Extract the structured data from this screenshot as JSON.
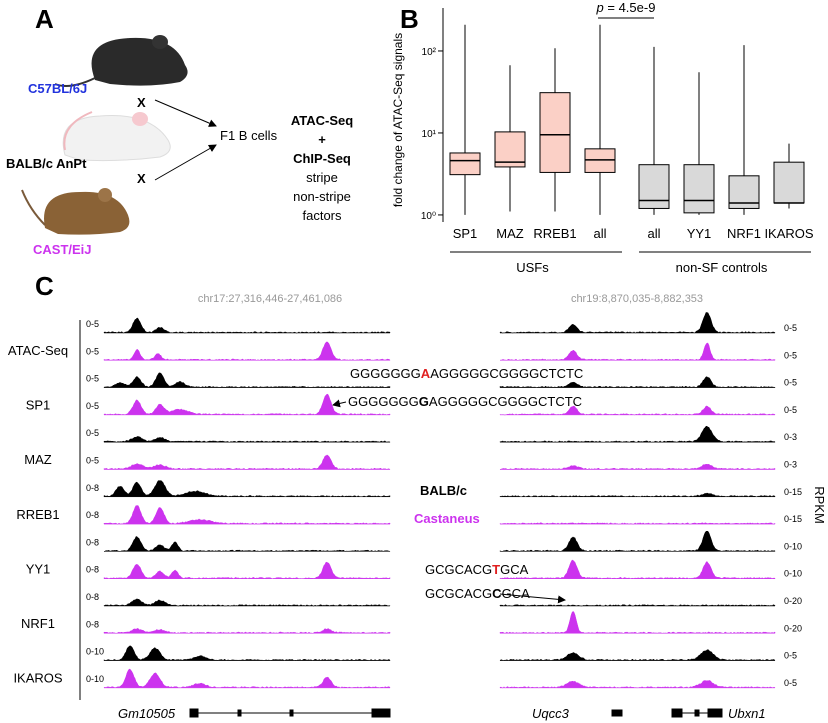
{
  "panel_a": {
    "label": "A",
    "strains": [
      {
        "name": "C57BL/6J",
        "color": "#2233dd"
      },
      {
        "name": "BALB/c AnPt",
        "color": "#000000"
      },
      {
        "name": "CAST/EiJ",
        "color": "#cc33ee"
      }
    ],
    "cross_marks": [
      "X",
      "X"
    ],
    "offspring": "F1 B cells",
    "assays": [
      "ATAC-Seq",
      "+",
      "ChIP-Seq",
      "stripe",
      "non-stripe",
      "factors"
    ]
  },
  "chart_data": {
    "type": "box",
    "label": "B",
    "ylabel": "fold change of ATAC-Seq signals",
    "log_y": true,
    "ylim": [
      0.82,
      316
    ],
    "yticks": [
      {
        "value": 1,
        "label": "10⁰"
      },
      {
        "value": 10,
        "label": "10¹"
      },
      {
        "value": 100,
        "label": "10²"
      }
    ],
    "annotation": {
      "symbol": "p",
      "text": " = 4.5e-9"
    },
    "series": [
      {
        "name": "USFs",
        "color": "#fbd0c6",
        "categories": [
          "SP1",
          "MAZ",
          "RREB1",
          "all"
        ],
        "values": [
          {
            "whislo": 1.0,
            "q1": 3.1,
            "med": 4.6,
            "q3": 5.7,
            "whishi": 209
          },
          {
            "whislo": 1.1,
            "q1": 3.85,
            "med": 4.4,
            "q3": 10.3,
            "whishi": 67
          },
          {
            "whislo": 1.1,
            "q1": 3.3,
            "med": 9.5,
            "q3": 31,
            "whishi": 108
          },
          {
            "whislo": 1.0,
            "q1": 3.3,
            "med": 4.7,
            "q3": 6.4,
            "whishi": 209
          }
        ]
      },
      {
        "name": "non-SF controls",
        "color": "#d9d9d9",
        "categories": [
          "all",
          "YY1",
          "NRF1",
          "IKAROS"
        ],
        "values": [
          {
            "whislo": 1.0,
            "q1": 1.2,
            "med": 1.5,
            "q3": 4.1,
            "whishi": 112
          },
          {
            "whislo": 1.0,
            "q1": 1.06,
            "med": 1.5,
            "q3": 4.1,
            "whishi": 55
          },
          {
            "whislo": 1.0,
            "q1": 1.2,
            "med": 1.4,
            "q3": 3.0,
            "whishi": 118
          },
          {
            "whislo": 1.2,
            "q1": 1.4,
            "med": 1.4,
            "q3": 4.4,
            "whishi": 7.4
          }
        ]
      }
    ]
  },
  "panel_c": {
    "label": "C",
    "loci": [
      "chr17:27,316,446-27,461,086",
      "chr19:8,870,035-8,882,353"
    ],
    "unit": "RPKM",
    "legend": [
      "BALB/c",
      "Castaneus"
    ],
    "tracks": [
      {
        "name": "ATAC-Seq",
        "left_scales": [
          "0-5",
          "0-5"
        ],
        "right_scales": [
          "0-5",
          "0-5"
        ]
      },
      {
        "name": "SP1",
        "left_scales": [
          "0-5",
          "0-5"
        ],
        "right_scales": [
          "0-5",
          "0-5"
        ]
      },
      {
        "name": "MAZ",
        "left_scales": [
          "0-5",
          "0-5"
        ],
        "right_scales": [
          "0-3",
          "0-3"
        ]
      },
      {
        "name": "RREB1",
        "left_scales": [
          "0-8",
          "0-8"
        ],
        "right_scales": [
          "0-15",
          "0-15"
        ]
      },
      {
        "name": "YY1",
        "left_scales": [
          "0-8",
          "0-8"
        ],
        "right_scales": [
          "0-10",
          "0-10"
        ]
      },
      {
        "name": "NRF1",
        "left_scales": [
          "0-8",
          "0-8"
        ],
        "right_scales": [
          "0-20",
          "0-20"
        ]
      },
      {
        "name": "IKAROS",
        "left_scales": [
          "0-10",
          "0-10"
        ],
        "right_scales": [
          "0-5",
          "0-5"
        ]
      }
    ],
    "sequences": [
      {
        "before": "GGGGGGG",
        "variant": "A",
        "after": "AGGGGGCGGGGCTCTC"
      },
      {
        "before": "GGGGGGG",
        "variant": "G",
        "after": "AGGGGGCGGGGCTCTC"
      },
      {
        "before": "GCGCACG",
        "variant": "T",
        "after": "GCA"
      },
      {
        "before": "GCGCACG",
        "variant": "C",
        "after": "GCA"
      }
    ],
    "genes": [
      "Gm10505",
      "Uqcc3",
      "Ubxn1"
    ]
  }
}
